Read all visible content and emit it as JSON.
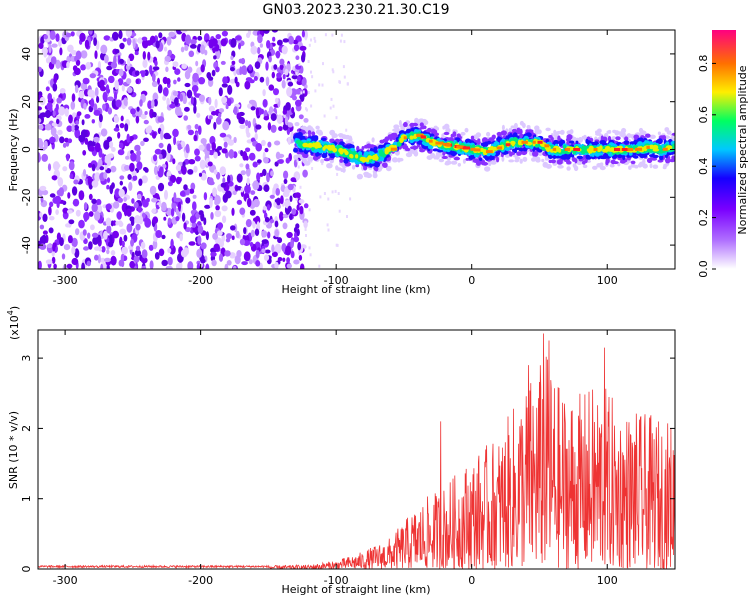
{
  "chart_data": [
    {
      "type": "heatmap",
      "title": "GN03.2023.230.21.30.C19",
      "xlabel": "Height of straight line (km)",
      "ylabel": "Frequency (Hz)",
      "xlim": [
        -320,
        150
      ],
      "ylim": [
        -50,
        50
      ],
      "x_ticks": [
        -300,
        -200,
        -100,
        0,
        100
      ],
      "y_ticks": [
        -40,
        -20,
        0,
        20,
        40
      ],
      "colorbar": {
        "label": "Normalized spectral amplitude",
        "range": [
          0,
          0.93
        ],
        "ticks": [
          "0.0",
          "0.2",
          "0.4",
          "0.6",
          "0.8"
        ],
        "colors": [
          "#ffffff",
          "#9000ff",
          "#1a00ff",
          "#00c8ff",
          "#00ff60",
          "#ffee00",
          "#ff8000",
          "#ff0040",
          "#ff0080"
        ]
      },
      "frequency_trace": [
        {
          "x": -130,
          "f": 3
        },
        {
          "x": -120,
          "f": 2
        },
        {
          "x": -110,
          "f": 1
        },
        {
          "x": -100,
          "f": 0
        },
        {
          "x": -90,
          "f": -2
        },
        {
          "x": -80,
          "f": -4
        },
        {
          "x": -70,
          "f": -3
        },
        {
          "x": -60,
          "f": 0
        },
        {
          "x": -55,
          "f": 2
        },
        {
          "x": -50,
          "f": 5
        },
        {
          "x": -40,
          "f": 6
        },
        {
          "x": -30,
          "f": 3
        },
        {
          "x": -20,
          "f": 2
        },
        {
          "x": -10,
          "f": 1
        },
        {
          "x": 0,
          "f": 0
        },
        {
          "x": 10,
          "f": -1
        },
        {
          "x": 20,
          "f": 1
        },
        {
          "x": 30,
          "f": 3
        },
        {
          "x": 40,
          "f": 3
        },
        {
          "x": 50,
          "f": 3
        },
        {
          "x": 55,
          "f": 1
        },
        {
          "x": 60,
          "f": 0
        },
        {
          "x": 70,
          "f": 0
        },
        {
          "x": 80,
          "f": 0
        },
        {
          "x": 90,
          "f": 0
        },
        {
          "x": 100,
          "f": 0
        },
        {
          "x": 110,
          "f": 0
        },
        {
          "x": 120,
          "f": 0
        },
        {
          "x": 130,
          "f": 1
        },
        {
          "x": 140,
          "f": 0
        },
        {
          "x": 150,
          "f": 1
        }
      ],
      "noise_region_x": [
        -320,
        -130
      ]
    },
    {
      "type": "line",
      "xlabel": "Height of straight line (km)",
      "ylabel": "SNR (10 * v/v)",
      "y_multiplier": "(x10",
      "y_multiplier_exp": "4",
      "y_multiplier_close": ")",
      "xlim": [
        -320,
        150
      ],
      "ylim": [
        0,
        3.4
      ],
      "x_ticks": [
        -300,
        -200,
        -100,
        0,
        100
      ],
      "y_ticks": [
        0,
        1,
        2,
        3
      ],
      "color": "#ee3333",
      "envelope": [
        {
          "x": -320,
          "y": 0.05
        },
        {
          "x": -150,
          "y": 0.05
        },
        {
          "x": -120,
          "y": 0.06
        },
        {
          "x": -100,
          "y": 0.12
        },
        {
          "x": -80,
          "y": 0.25
        },
        {
          "x": -60,
          "y": 0.45
        },
        {
          "x": -45,
          "y": 0.8
        },
        {
          "x": -35,
          "y": 1.0
        },
        {
          "x": -20,
          "y": 1.2
        },
        {
          "x": 0,
          "y": 1.6
        },
        {
          "x": 20,
          "y": 1.9
        },
        {
          "x": 35,
          "y": 2.5
        },
        {
          "x": 45,
          "y": 2.8
        },
        {
          "x": 55,
          "y": 3.1
        },
        {
          "x": 65,
          "y": 2.6
        },
        {
          "x": 80,
          "y": 2.5
        },
        {
          "x": 95,
          "y": 2.7
        },
        {
          "x": 110,
          "y": 2.3
        },
        {
          "x": 130,
          "y": 2.2
        },
        {
          "x": 150,
          "y": 2.1
        }
      ],
      "spikes": [
        {
          "x": -23,
          "y": 2.1
        },
        {
          "x": 53,
          "y": 3.35
        },
        {
          "x": 57,
          "y": 3.25
        },
        {
          "x": 98,
          "y": 3.15
        },
        {
          "x": 42,
          "y": 2.9
        }
      ]
    }
  ]
}
